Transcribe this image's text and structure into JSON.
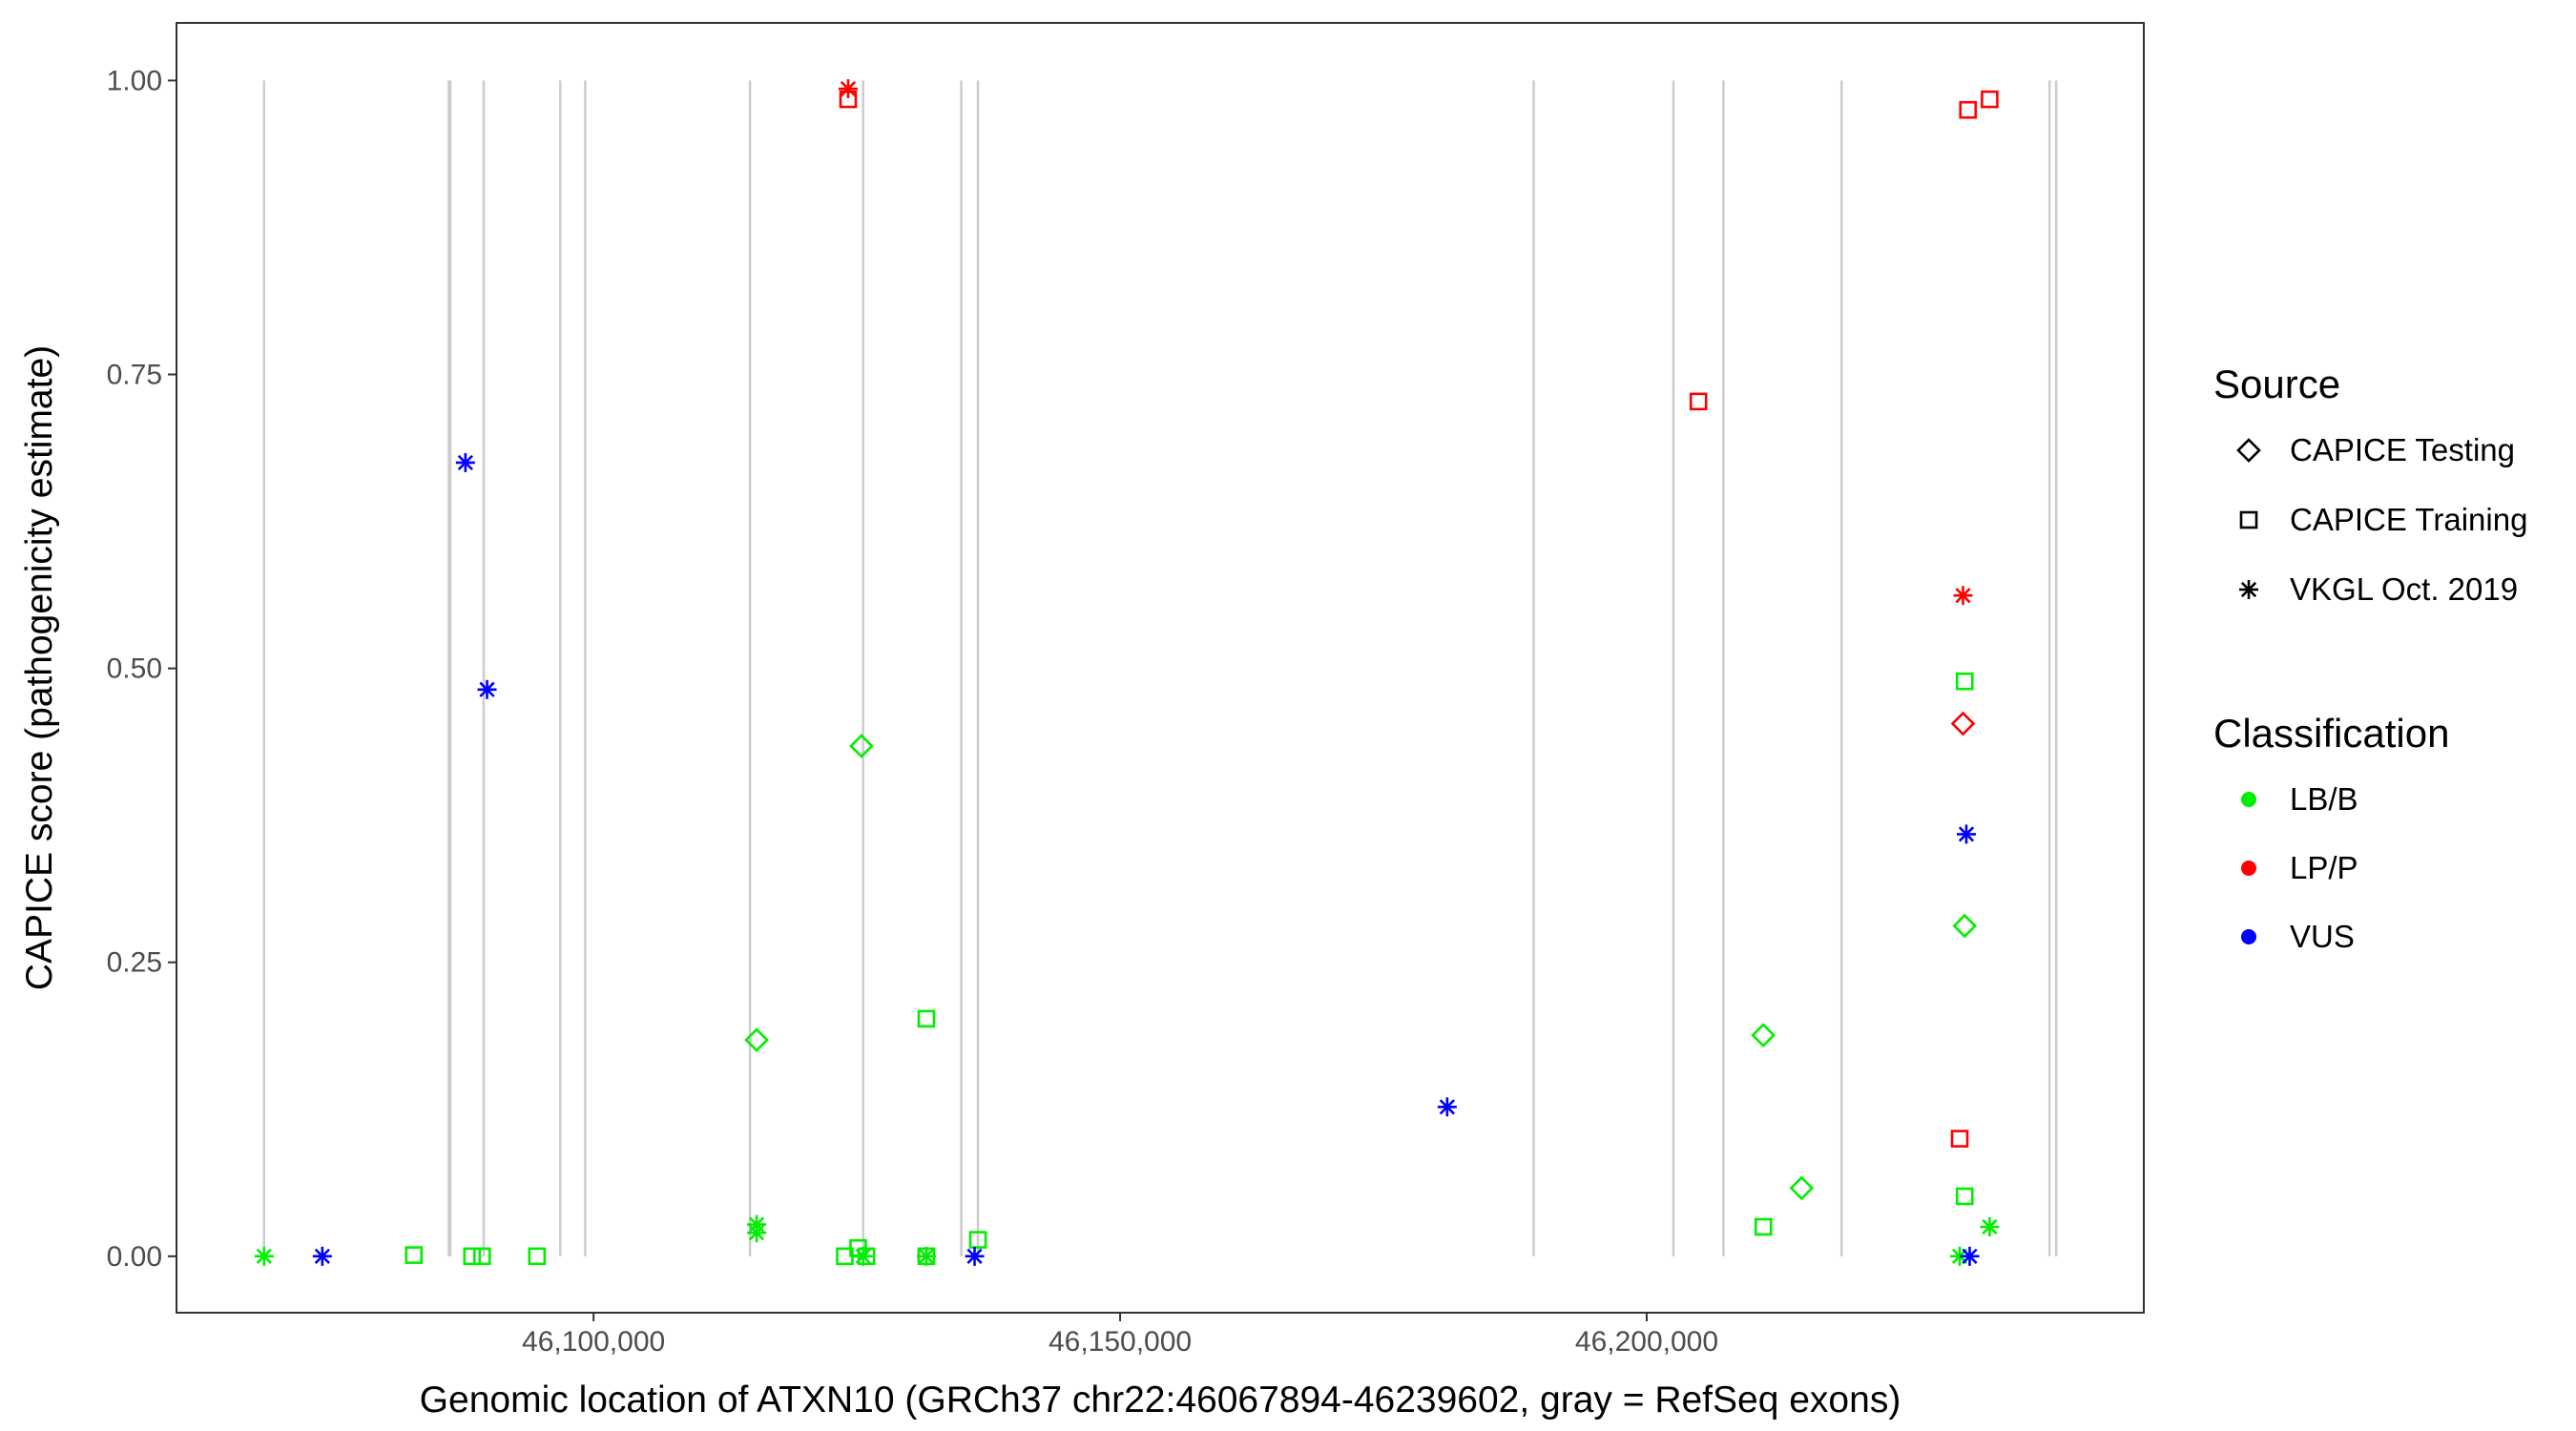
{
  "chart_data": {
    "type": "scatter",
    "xlabel": "Genomic location of ATXN10 (GRCh37 chr22:46067894-46239602, gray = RefSeq exons)",
    "ylabel": "CAPICE score (pathogenicity estimate)",
    "xlim": [
      46060400,
      46247200
    ],
    "ylim": [
      -0.048,
      1.049
    ],
    "x_ticks": [
      46100000,
      46150000,
      46200000
    ],
    "x_tick_labels": [
      "46,100,000",
      "46,150,000",
      "46,200,000"
    ],
    "y_ticks": [
      0,
      0.25,
      0.5,
      0.75,
      1.0
    ],
    "y_tick_labels": [
      "0.00",
      "0.25",
      "0.50",
      "0.75",
      "1.00"
    ],
    "grid": false,
    "exon_positions": [
      46068716,
      46086254,
      46086400,
      46089572,
      46096840,
      46099210,
      46114852,
      46125596,
      46134918,
      46136498,
      46189270,
      46202542,
      46207282,
      46218500,
      46238250,
      46238882
    ],
    "exon_color": "#cccccc",
    "legend_placement": "right",
    "legend": {
      "source_title": "Source",
      "source_items": [
        {
          "label": "CAPICE Testing",
          "shape": "diamond"
        },
        {
          "label": "CAPICE Training",
          "shape": "square"
        },
        {
          "label": "VKGL Oct. 2019",
          "shape": "asterisk"
        }
      ],
      "class_title": "Classification",
      "class_items": [
        {
          "label": "LB/B",
          "color": "#00ee00"
        },
        {
          "label": "LP/P",
          "color": "#ff0000"
        },
        {
          "label": "VUS",
          "color": "#0000ff"
        }
      ]
    },
    "points": [
      {
        "x": 46068716,
        "y": 0.0,
        "shape": "asterisk",
        "cls": "LB/B"
      },
      {
        "x": 46082936,
        "y": 0.001,
        "shape": "square",
        "cls": "LB/B"
      },
      {
        "x": 46088466,
        "y": 0.0,
        "shape": "square",
        "cls": "LB/B"
      },
      {
        "x": 46089414,
        "y": 0.0,
        "shape": "square",
        "cls": "LB/B"
      },
      {
        "x": 46094628,
        "y": 0.0,
        "shape": "square",
        "cls": "LB/B"
      },
      {
        "x": 46115484,
        "y": 0.027,
        "shape": "asterisk",
        "cls": "LB/B"
      },
      {
        "x": 46115484,
        "y": 0.02,
        "shape": "asterisk",
        "cls": "LB/B"
      },
      {
        "x": 46115484,
        "y": 0.184,
        "shape": "diamond",
        "cls": "LB/B"
      },
      {
        "x": 46123858,
        "y": 0.0,
        "shape": "square",
        "cls": "LB/B"
      },
      {
        "x": 46125122,
        "y": 0.007,
        "shape": "square",
        "cls": "LB/B"
      },
      {
        "x": 46125596,
        "y": 0.0,
        "shape": "asterisk",
        "cls": "LB/B"
      },
      {
        "x": 46125912,
        "y": 0.0,
        "shape": "square",
        "cls": "LB/B"
      },
      {
        "x": 46125438,
        "y": 0.434,
        "shape": "diamond",
        "cls": "LB/B"
      },
      {
        "x": 46131600,
        "y": 0.202,
        "shape": "square",
        "cls": "LB/B"
      },
      {
        "x": 46131600,
        "y": 0.0,
        "shape": "square",
        "cls": "LB/B"
      },
      {
        "x": 46131600,
        "y": 0.0,
        "shape": "asterisk",
        "cls": "LB/B"
      },
      {
        "x": 46136498,
        "y": 0.014,
        "shape": "square",
        "cls": "LB/B"
      },
      {
        "x": 46211074,
        "y": 0.188,
        "shape": "diamond",
        "cls": "LB/B"
      },
      {
        "x": 46211074,
        "y": 0.025,
        "shape": "square",
        "cls": "LB/B"
      },
      {
        "x": 46214708,
        "y": 0.058,
        "shape": "diamond",
        "cls": "LB/B"
      },
      {
        "x": 46230192,
        "y": 0.489,
        "shape": "square",
        "cls": "LB/B"
      },
      {
        "x": 46230192,
        "y": 0.281,
        "shape": "diamond",
        "cls": "LB/B"
      },
      {
        "x": 46230192,
        "y": 0.051,
        "shape": "square",
        "cls": "LB/B"
      },
      {
        "x": 46229718,
        "y": 0.0,
        "shape": "asterisk",
        "cls": "LB/B"
      },
      {
        "x": 46232562,
        "y": 0.025,
        "shape": "asterisk",
        "cls": "LB/B"
      },
      {
        "x": 46124174,
        "y": 0.993,
        "shape": "asterisk",
        "cls": "LP/P"
      },
      {
        "x": 46124174,
        "y": 0.984,
        "shape": "square",
        "cls": "LP/P"
      },
      {
        "x": 46204912,
        "y": 0.727,
        "shape": "square",
        "cls": "LP/P"
      },
      {
        "x": 46230508,
        "y": 0.975,
        "shape": "square",
        "cls": "LP/P"
      },
      {
        "x": 46232562,
        "y": 0.984,
        "shape": "square",
        "cls": "LP/P"
      },
      {
        "x": 46230034,
        "y": 0.562,
        "shape": "asterisk",
        "cls": "LP/P"
      },
      {
        "x": 46230034,
        "y": 0.453,
        "shape": "diamond",
        "cls": "LP/P"
      },
      {
        "x": 46229718,
        "y": 0.1,
        "shape": "square",
        "cls": "LP/P"
      },
      {
        "x": 46074246,
        "y": 0.0,
        "shape": "asterisk",
        "cls": "VUS"
      },
      {
        "x": 46087834,
        "y": 0.675,
        "shape": "asterisk",
        "cls": "VUS"
      },
      {
        "x": 46089888,
        "y": 0.482,
        "shape": "asterisk",
        "cls": "VUS"
      },
      {
        "x": 46136182,
        "y": 0.0,
        "shape": "asterisk",
        "cls": "VUS"
      },
      {
        "x": 46181054,
        "y": 0.127,
        "shape": "asterisk",
        "cls": "VUS"
      },
      {
        "x": 46230350,
        "y": 0.359,
        "shape": "asterisk",
        "cls": "VUS"
      },
      {
        "x": 46230666,
        "y": 0.0,
        "shape": "asterisk",
        "cls": "VUS"
      }
    ]
  }
}
